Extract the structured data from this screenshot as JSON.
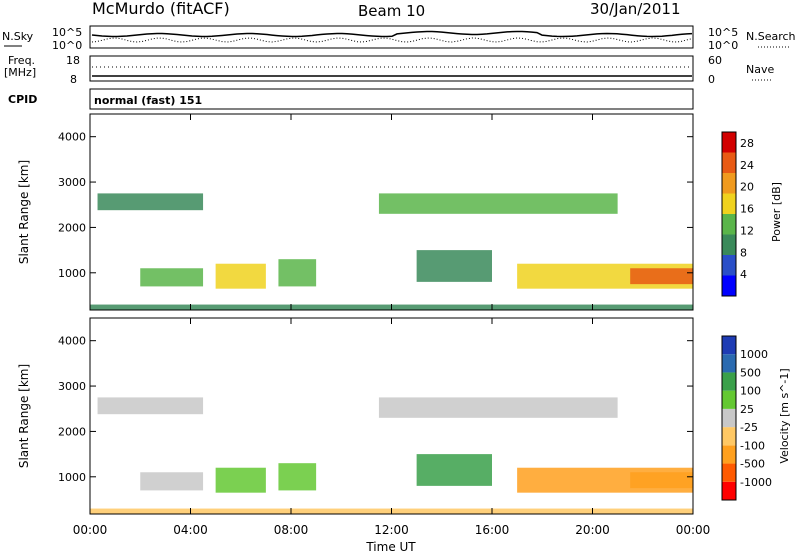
{
  "header": {
    "station": "McMurdo (fitACF)",
    "beam": "Beam 10",
    "date": "30/Jan/2011"
  },
  "top_panels": {
    "nsky_label": "N.Sky",
    "nsky_ticks": [
      "10^5",
      "10^0"
    ],
    "nsearch_label": "N.Search",
    "nsearch_ticks": [
      "10^5",
      "10^0"
    ],
    "freq_label_1": "Freq.",
    "freq_label_2": "[MHz]",
    "freq_ticks": [
      "18",
      "8"
    ],
    "nave_label": "Nave",
    "nave_ticks": [
      "60",
      "0"
    ],
    "cpid_label": "CPID",
    "cpid_value": "normal (fast) 151"
  },
  "colors": {
    "power_scale": [
      "#0000ff",
      "#2a4fc8",
      "#3a8a5a",
      "#5ab54a",
      "#f0d21e",
      "#f09a1e",
      "#e85a14",
      "#d20000"
    ],
    "velocity_scale": [
      "#ff0000",
      "#ff5a00",
      "#ffa01e",
      "#ffc864",
      "#c8c8c8",
      "#64c832",
      "#3aa04a",
      "#2a6ab0",
      "#1e3cb4"
    ]
  },
  "chart_data": [
    {
      "type": "heatmap",
      "title": "",
      "ylabel": "Slant Range [km]",
      "xlabel": "",
      "x_range": [
        "00:00",
        "24:00"
      ],
      "ylim": [
        180,
        4500
      ],
      "yticks": [
        "1000",
        "2000",
        "3000",
        "4000"
      ],
      "xticks": [
        "00:00",
        "04:00",
        "08:00",
        "12:00",
        "16:00",
        "20:00",
        "00:00"
      ],
      "colorbar": {
        "label": "Power [dB]",
        "ticks": [
          "4",
          "8",
          "12",
          "16",
          "20",
          "24",
          "28"
        ],
        "range": [
          0,
          30
        ]
      },
      "regions": [
        {
          "t0": 0.0,
          "t1": 24.0,
          "r0": 180,
          "r1": 300,
          "value": 8
        },
        {
          "t0": 0.3,
          "t1": 4.5,
          "r0": 2380,
          "r1": 2750,
          "value": 10
        },
        {
          "t0": 11.5,
          "t1": 21.0,
          "r0": 2300,
          "r1": 2750,
          "value": 14
        },
        {
          "t0": 2.0,
          "t1": 4.5,
          "r0": 700,
          "r1": 1100,
          "value": 12
        },
        {
          "t0": 5.0,
          "t1": 7.0,
          "r0": 650,
          "r1": 1200,
          "value": 16
        },
        {
          "t0": 7.5,
          "t1": 9.0,
          "r0": 700,
          "r1": 1300,
          "value": 12
        },
        {
          "t0": 13.0,
          "t1": 16.0,
          "r0": 800,
          "r1": 1500,
          "value": 10
        },
        {
          "t0": 17.0,
          "t1": 24.0,
          "r0": 650,
          "r1": 1200,
          "value": 18
        },
        {
          "t0": 21.5,
          "t1": 24.0,
          "r0": 750,
          "r1": 1100,
          "value": 26
        }
      ]
    },
    {
      "type": "heatmap",
      "title": "",
      "ylabel": "Slant Range [km]",
      "xlabel": "Time UT",
      "x_range": [
        "00:00",
        "24:00"
      ],
      "ylim": [
        180,
        4500
      ],
      "yticks": [
        "1000",
        "2000",
        "3000",
        "4000"
      ],
      "xticks": [
        "00:00",
        "04:00",
        "08:00",
        "12:00",
        "16:00",
        "20:00",
        "00:00"
      ],
      "colorbar": {
        "label": "Velocity [m s^-1]",
        "ticks": [
          "1000",
          "500",
          "100",
          "25",
          "-25",
          "-100",
          "-500",
          "-1000"
        ],
        "range": [
          -1000,
          1000
        ]
      },
      "regions": [
        {
          "t0": 0.0,
          "t1": 24.0,
          "r0": 180,
          "r1": 300,
          "value": -100
        },
        {
          "t0": 0.3,
          "t1": 4.5,
          "r0": 2380,
          "r1": 2750,
          "value": 0
        },
        {
          "t0": 11.5,
          "t1": 21.0,
          "r0": 2300,
          "r1": 2750,
          "value": 0
        },
        {
          "t0": 2.0,
          "t1": 4.5,
          "r0": 700,
          "r1": 1100,
          "value": 0
        },
        {
          "t0": 5.0,
          "t1": 7.0,
          "r0": 650,
          "r1": 1200,
          "value": 50
        },
        {
          "t0": 7.5,
          "t1": 9.0,
          "r0": 700,
          "r1": 1300,
          "value": 50
        },
        {
          "t0": 13.0,
          "t1": 16.0,
          "r0": 800,
          "r1": 1500,
          "value": 100
        },
        {
          "t0": 17.0,
          "t1": 24.0,
          "r0": 650,
          "r1": 1200,
          "value": -300
        },
        {
          "t0": 21.5,
          "t1": 24.0,
          "r0": 750,
          "r1": 1100,
          "value": -200
        }
      ]
    }
  ]
}
